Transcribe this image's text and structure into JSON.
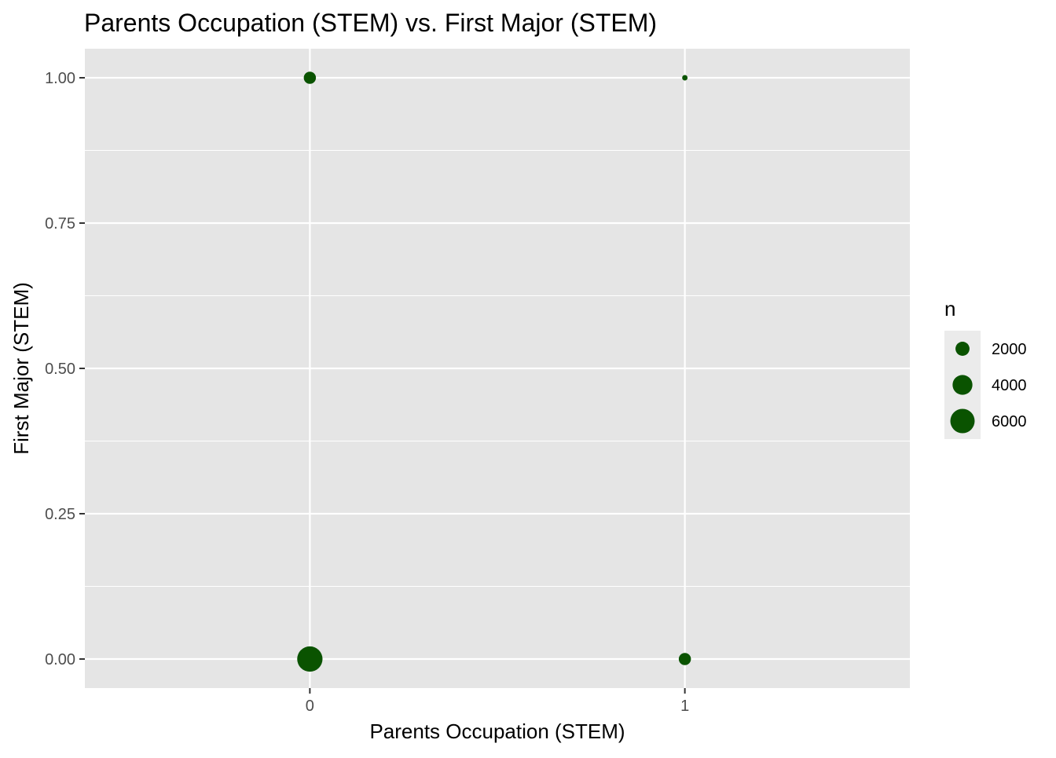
{
  "chart_data": {
    "type": "scatter",
    "title": "Parents Occupation (STEM) vs. First Major (STEM)",
    "xlabel": "Parents Occupation (STEM)",
    "ylabel": "First Major (STEM)",
    "xlim": [
      -0.6,
      1.6
    ],
    "ylim": [
      -0.05,
      1.05
    ],
    "x_ticks": [
      0,
      1
    ],
    "x_tick_labels": [
      "0",
      "1"
    ],
    "y_ticks": [
      0,
      0.25,
      0.5,
      0.75,
      1.0
    ],
    "y_tick_labels": [
      "0.00",
      "0.25",
      "0.50",
      "0.75",
      "1.00"
    ],
    "grid": true,
    "point_color": "#0a5300",
    "panel_background": "#e5e5e5",
    "size_variable": "n",
    "points": [
      {
        "x": 0,
        "y": 1,
        "n": 1500
      },
      {
        "x": 1,
        "y": 1,
        "n": 300
      },
      {
        "x": 0,
        "y": 0,
        "n": 6500
      },
      {
        "x": 1,
        "y": 0,
        "n": 1500
      }
    ],
    "legend": {
      "title": "n",
      "position": "right",
      "entries": [
        {
          "label": "2000",
          "value": 2000
        },
        {
          "label": "4000",
          "value": 4000
        },
        {
          "label": "6000",
          "value": 6000
        }
      ]
    }
  }
}
